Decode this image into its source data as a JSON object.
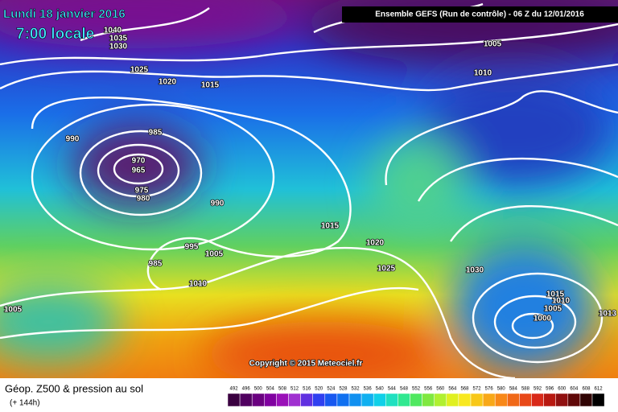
{
  "header": {
    "date": "Lundi 18 janvier 2016",
    "time": "7:00 locale",
    "run": "Ensemble GEFS  (Run de contrôle)  -  06 Z du 12/01/2016",
    "copyright": "Copyright © 2015 Meteociel.fr"
  },
  "footer": {
    "title": "Géop. Z500 & pression au sol",
    "lead": "(+ 144h)",
    "scale": [
      492,
      496,
      500,
      504,
      508,
      512,
      516,
      520,
      524,
      528,
      532,
      536,
      540,
      544,
      548,
      552,
      556,
      560,
      564,
      568,
      572,
      576,
      580,
      584,
      588,
      592,
      596,
      600,
      604,
      608,
      612
    ]
  },
  "isobars": [
    1040,
    1035,
    1030,
    1025,
    1020,
    1015,
    1005,
    1010,
    985,
    990,
    970,
    965,
    975,
    980,
    990,
    1015,
    1020,
    1025,
    1030,
    985,
    995,
    1005,
    1010,
    1005,
    1015,
    1010,
    1005,
    1000,
    1013
  ]
}
